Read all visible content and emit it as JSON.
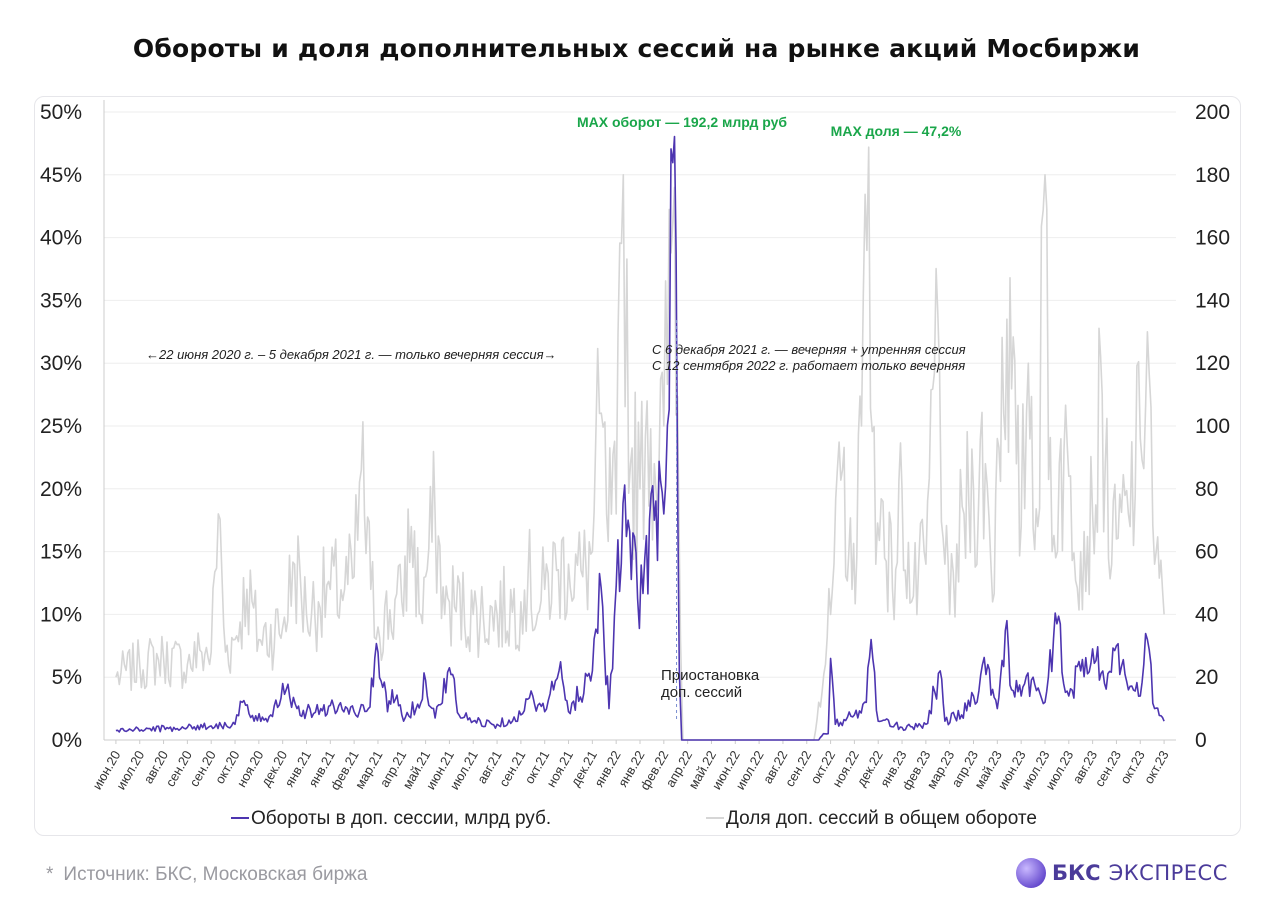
{
  "title": "Обороты и доля дополнительных сессий на рынке акций Мосбиржи",
  "source": "Источник: БКС, Московская биржа",
  "source_marker": "*",
  "brand": {
    "part1": "БКС",
    "part2": "ЭКСПРЕСС",
    "logo_icon": "bks-sphere-icon",
    "color": "#4b3b9a"
  },
  "colors": {
    "turnover": "#4d35b0",
    "share": "#d6d6d6",
    "max_label": "#1aa64a",
    "grid": "#eeeeee"
  },
  "chart_data": {
    "type": "line",
    "x_labels": [
      "июн.20",
      "июл.20",
      "авг.20",
      "сен.20",
      "сен.20",
      "окт.20",
      "ноя.20",
      "дек.20",
      "янв.21",
      "янв.21",
      "фев.21",
      "мар.21",
      "апр.21",
      "май.21",
      "июн.21",
      "июл.21",
      "авг.21",
      "сен.21",
      "окт.21",
      "ноя.21",
      "дек.21",
      "янв.22",
      "янв.22",
      "фев.22",
      "апр.22",
      "май.22",
      "июн.22",
      "июл.22",
      "авг.22",
      "сен.22",
      "окт.22",
      "ноя.22",
      "дек.22",
      "янв.23",
      "фев.23",
      "мар.23",
      "апр.23",
      "май.23",
      "июн.23",
      "июл.23",
      "июл.23",
      "авг.23",
      "сен.23",
      "окт.23",
      "окт.23"
    ],
    "y_left": {
      "ticks": [
        "0%",
        "5%",
        "10%",
        "15%",
        "20%",
        "25%",
        "30%",
        "35%",
        "40%",
        "45%",
        "50%"
      ],
      "min": 0,
      "max": 50
    },
    "y_right": {
      "ticks": [
        "0",
        "20",
        "40",
        "60",
        "80",
        "100",
        "120",
        "140",
        "160",
        "180",
        "200"
      ],
      "min": 0,
      "max": 200
    },
    "series": [
      {
        "name": "Обороты в доп. сессии, млрд руб.",
        "axis": "right",
        "anchors": [
          [
            0,
            3
          ],
          [
            3,
            4
          ],
          [
            4,
            4.5
          ],
          [
            5,
            5
          ],
          [
            5.3,
            12
          ],
          [
            5.8,
            6
          ],
          [
            6.5,
            8
          ],
          [
            7,
            18
          ],
          [
            7.6,
            10
          ],
          [
            8,
            9
          ],
          [
            8.6,
            10
          ],
          [
            9,
            11
          ],
          [
            10,
            9
          ],
          [
            10.6,
            10
          ],
          [
            11,
            28
          ],
          [
            11.4,
            9
          ],
          [
            11.6,
            16
          ],
          [
            12,
            8
          ],
          [
            12.6,
            10
          ],
          [
            13,
            19
          ],
          [
            13.4,
            7
          ],
          [
            14,
            23
          ],
          [
            14.4,
            8
          ],
          [
            15,
            6
          ],
          [
            16,
            5
          ],
          [
            17,
            8
          ],
          [
            17.5,
            14
          ],
          [
            18,
            9
          ],
          [
            18.6,
            22
          ],
          [
            19,
            9
          ],
          [
            20,
            22
          ],
          [
            20.3,
            53
          ],
          [
            20.7,
            10
          ],
          [
            21,
            49
          ],
          [
            21.5,
            70
          ],
          [
            21.9,
            45
          ],
          [
            22.2,
            58
          ],
          [
            22.6,
            70
          ],
          [
            23,
            72
          ],
          [
            23.45,
            192.2
          ],
          [
            23.65,
            22
          ],
          [
            23.75,
            0
          ],
          [
            29.5,
            0
          ],
          [
            29.7,
            2
          ],
          [
            29.9,
            2
          ],
          [
            30,
            26
          ],
          [
            30.2,
            5
          ],
          [
            31,
            8
          ],
          [
            31.5,
            12
          ],
          [
            31.7,
            32
          ],
          [
            32,
            6
          ],
          [
            33,
            4
          ],
          [
            34,
            5
          ],
          [
            34.6,
            22
          ],
          [
            34.8,
            6
          ],
          [
            35.5,
            8
          ],
          [
            36,
            14
          ],
          [
            36.6,
            24
          ],
          [
            37,
            10
          ],
          [
            37.4,
            38
          ],
          [
            37.6,
            16
          ],
          [
            38,
            14
          ],
          [
            38.5,
            20
          ],
          [
            39,
            12
          ],
          [
            39.5,
            37
          ],
          [
            40,
            14
          ],
          [
            40.5,
            22
          ],
          [
            41,
            29
          ],
          [
            41.5,
            18
          ],
          [
            42,
            30
          ],
          [
            42.5,
            16
          ],
          [
            43,
            14
          ],
          [
            43.3,
            32
          ],
          [
            43.6,
            10
          ],
          [
            44,
            6
          ]
        ]
      },
      {
        "name": "Доля доп. сессий в общем обороте",
        "axis": "left",
        "anchors": [
          [
            0,
            5
          ],
          [
            1,
            6
          ],
          [
            2,
            6.5
          ],
          [
            3,
            6
          ],
          [
            3.6,
            7
          ],
          [
            4,
            7
          ],
          [
            4.3,
            18
          ],
          [
            4.6,
            7
          ],
          [
            5,
            8
          ],
          [
            5.5,
            12
          ],
          [
            6,
            8
          ],
          [
            7,
            9
          ],
          [
            7.5,
            14
          ],
          [
            8,
            10
          ],
          [
            8.5,
            11
          ],
          [
            9,
            12
          ],
          [
            9.6,
            12
          ],
          [
            10,
            13
          ],
          [
            10.3,
            21.5
          ],
          [
            10.7,
            12
          ],
          [
            11,
            9
          ],
          [
            12,
            11
          ],
          [
            12.4,
            17
          ],
          [
            12.8,
            10
          ],
          [
            13,
            13
          ],
          [
            13.4,
            18
          ],
          [
            13.8,
            10
          ],
          [
            14,
            11
          ],
          [
            15,
            10
          ],
          [
            16,
            10
          ],
          [
            17,
            11
          ],
          [
            17.3,
            13
          ],
          [
            17.7,
            10
          ],
          [
            18,
            12
          ],
          [
            18.5,
            13.5
          ],
          [
            19,
            14
          ],
          [
            19.6,
            13
          ],
          [
            20,
            15
          ],
          [
            20.3,
            26
          ],
          [
            20.6,
            18
          ],
          [
            21,
            18
          ],
          [
            21.3,
            45
          ],
          [
            21.6,
            22
          ],
          [
            22,
            20
          ],
          [
            22.3,
            27
          ],
          [
            22.6,
            22
          ],
          [
            23,
            25
          ],
          [
            23.45,
            44
          ],
          [
            23.7,
            8
          ],
          [
            23.8,
            0
          ],
          [
            29.3,
            0
          ],
          [
            29.5,
            3
          ],
          [
            30,
            10
          ],
          [
            30.5,
            21.5
          ],
          [
            30.9,
            12
          ],
          [
            31.3,
            25
          ],
          [
            31.6,
            47.2
          ],
          [
            31.9,
            14
          ],
          [
            32.2,
            19
          ],
          [
            32.6,
            12
          ],
          [
            33,
            20
          ],
          [
            33.4,
            11
          ],
          [
            34,
            14
          ],
          [
            34.5,
            34
          ],
          [
            34.8,
            14
          ],
          [
            35,
            10
          ],
          [
            35.6,
            18
          ],
          [
            36,
            20
          ],
          [
            36.5,
            22
          ],
          [
            36.8,
            11
          ],
          [
            37,
            24
          ],
          [
            37.4,
            33.5
          ],
          [
            37.8,
            22
          ],
          [
            38,
            17
          ],
          [
            38.3,
            30
          ],
          [
            38.7,
            17
          ],
          [
            39,
            45
          ],
          [
            39.3,
            15
          ],
          [
            39.6,
            22
          ],
          [
            40,
            21
          ],
          [
            40.5,
            15
          ],
          [
            41,
            18
          ],
          [
            41.4,
            27.5
          ],
          [
            41.8,
            14
          ],
          [
            42,
            16
          ],
          [
            42.5,
            18
          ],
          [
            43,
            24
          ],
          [
            43.3,
            32.5
          ],
          [
            43.6,
            14
          ],
          [
            44,
            10
          ]
        ]
      }
    ],
    "annotations": [
      {
        "id": "max-turnover",
        "text": "MAX оборот — 192,2 млрд руб",
        "x": 23.45,
        "y_right": 192.2
      },
      {
        "id": "max-share",
        "text": "MAX доля — 47,2%",
        "x": 31.6,
        "y_left": 47.2
      },
      {
        "id": "evening-only",
        "text": "←22 июня 2020 г. – 5 декабря 2021 г. — только вечерняя сессия→"
      },
      {
        "id": "morning-evening",
        "line1": "С 6 декабря 2021 г. —  вечерняя + утренняя сессия",
        "line2": "С 12 сентября 2022 г. работает только вечерняя"
      },
      {
        "id": "suspension",
        "line1": "Приостановка",
        "line2": "доп. сессий"
      }
    ],
    "legend": {
      "placement": "bottom"
    },
    "grid": true
  }
}
